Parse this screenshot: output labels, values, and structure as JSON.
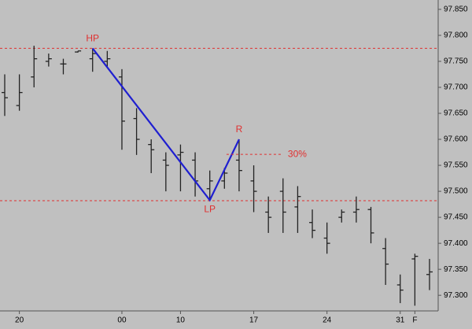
{
  "chart_data": {
    "type": "ohlc",
    "color": "#222222",
    "categories": [
      null,
      "20",
      null,
      null,
      null,
      null,
      null,
      null,
      "00",
      null,
      null,
      null,
      "10",
      null,
      null,
      null,
      null,
      "17",
      null,
      null,
      null,
      null,
      "24",
      null,
      null,
      null,
      null,
      "31",
      "F",
      null
    ],
    "series": [
      {
        "open": [
          97.69,
          97.665,
          97.72,
          97.75,
          97.745,
          97.768,
          97.755,
          97.75,
          97.72,
          97.64,
          97.59,
          97.56,
          97.57,
          97.56,
          97.505,
          97.52,
          97.56,
          97.52,
          97.46,
          97.5,
          97.47,
          97.44,
          97.41,
          97.45,
          97.46,
          97.465,
          97.39,
          97.32,
          97.37,
          97.34
        ],
        "high": [
          97.725,
          97.725,
          97.78,
          97.765,
          97.755,
          97.77,
          97.775,
          97.77,
          97.735,
          97.66,
          97.6,
          97.575,
          97.59,
          97.575,
          97.54,
          97.545,
          97.6,
          97.55,
          97.49,
          97.525,
          97.51,
          97.465,
          97.44,
          97.465,
          97.49,
          97.47,
          97.41,
          97.34,
          97.38,
          97.37
        ],
        "low": [
          97.645,
          97.655,
          97.7,
          97.74,
          97.725,
          97.767,
          97.73,
          97.74,
          97.58,
          97.57,
          97.535,
          97.5,
          97.5,
          97.49,
          97.485,
          97.505,
          97.5,
          97.46,
          97.42,
          97.42,
          97.42,
          97.41,
          97.38,
          97.44,
          97.44,
          97.4,
          97.32,
          97.285,
          97.28,
          97.31
        ],
        "close": [
          97.68,
          97.69,
          97.755,
          97.755,
          97.745,
          97.77,
          97.765,
          97.755,
          97.635,
          97.6,
          97.58,
          97.55,
          97.575,
          97.52,
          97.52,
          97.535,
          97.54,
          97.5,
          97.45,
          97.46,
          97.49,
          97.425,
          97.4,
          97.46,
          97.465,
          97.42,
          97.36,
          97.31,
          97.375,
          97.345
        ]
      }
    ],
    "ylim": [
      97.27,
      97.868
    ],
    "yticks": [
      {
        "value": 97.3,
        "label": "97.300"
      },
      {
        "value": 97.35,
        "label": "97.350"
      },
      {
        "value": 97.4,
        "label": "97.400"
      },
      {
        "value": 97.45,
        "label": "97.450"
      },
      {
        "value": 97.5,
        "label": "97.500"
      },
      {
        "value": 97.55,
        "label": "97.550"
      },
      {
        "value": 97.6,
        "label": "97.600"
      },
      {
        "value": 97.65,
        "label": "97.650"
      },
      {
        "value": 97.7,
        "label": "97.700"
      },
      {
        "value": 97.75,
        "label": "97.750"
      },
      {
        "value": 97.8,
        "label": "97.800"
      },
      {
        "value": 97.85,
        "label": "97.850"
      }
    ],
    "hlines": [
      {
        "value": 97.775,
        "color": "#e03030"
      },
      {
        "value": 97.482,
        "color": "#e03030"
      }
    ],
    "pattern": {
      "color": "#1f1fd0",
      "label_color": "#e03030",
      "points": [
        {
          "label": "HP",
          "category": 6,
          "value": 97.775
        },
        {
          "label": "LP",
          "category": 14,
          "value": 97.483
        },
        {
          "label": "R",
          "category": 16,
          "value": 97.6
        }
      ]
    },
    "retracement": {
      "label": "30%",
      "value": 97.571,
      "color": "#e03030"
    }
  }
}
